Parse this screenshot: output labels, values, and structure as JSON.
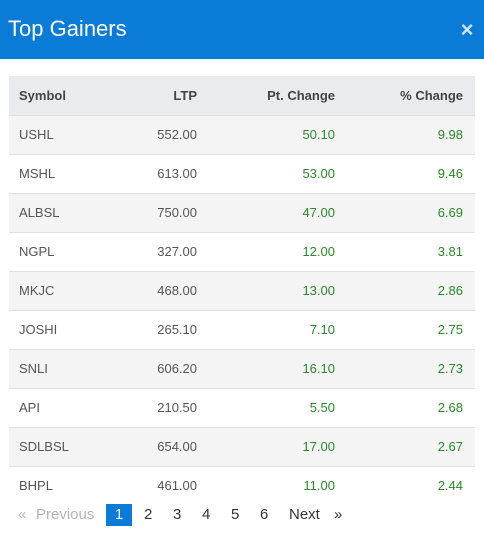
{
  "header": {
    "title": "Top Gainers",
    "close_label": "×"
  },
  "table": {
    "columns": [
      "Symbol",
      "LTP",
      "Pt. Change",
      "% Change"
    ],
    "rows": [
      {
        "symbol": "USHL",
        "ltp": "552.00",
        "pt_change": "50.10",
        "pct_change": "9.98"
      },
      {
        "symbol": "MSHL",
        "ltp": "613.00",
        "pt_change": "53.00",
        "pct_change": "9.46"
      },
      {
        "symbol": "ALBSL",
        "ltp": "750.00",
        "pt_change": "47.00",
        "pct_change": "6.69"
      },
      {
        "symbol": "NGPL",
        "ltp": "327.00",
        "pt_change": "12.00",
        "pct_change": "3.81"
      },
      {
        "symbol": "MKJC",
        "ltp": "468.00",
        "pt_change": "13.00",
        "pct_change": "2.86"
      },
      {
        "symbol": "JOSHI",
        "ltp": "265.10",
        "pt_change": "7.10",
        "pct_change": "2.75"
      },
      {
        "symbol": "SNLI",
        "ltp": "606.20",
        "pt_change": "16.10",
        "pct_change": "2.73"
      },
      {
        "symbol": "API",
        "ltp": "210.50",
        "pt_change": "5.50",
        "pct_change": "2.68"
      },
      {
        "symbol": "SDLBSL",
        "ltp": "654.00",
        "pt_change": "17.00",
        "pct_change": "2.67"
      },
      {
        "symbol": "BHPL",
        "ltp": "461.00",
        "pt_change": "11.00",
        "pct_change": "2.44"
      }
    ]
  },
  "pagination": {
    "first_symbol": "«",
    "previous_label": "Previous",
    "pages": [
      "1",
      "2",
      "3",
      "4",
      "5",
      "6"
    ],
    "current_page": "1",
    "next_label": "Next",
    "last_symbol": "»"
  },
  "colors": {
    "header_bg": "#0a7bd6",
    "positive_change": "#2a8a2a"
  }
}
